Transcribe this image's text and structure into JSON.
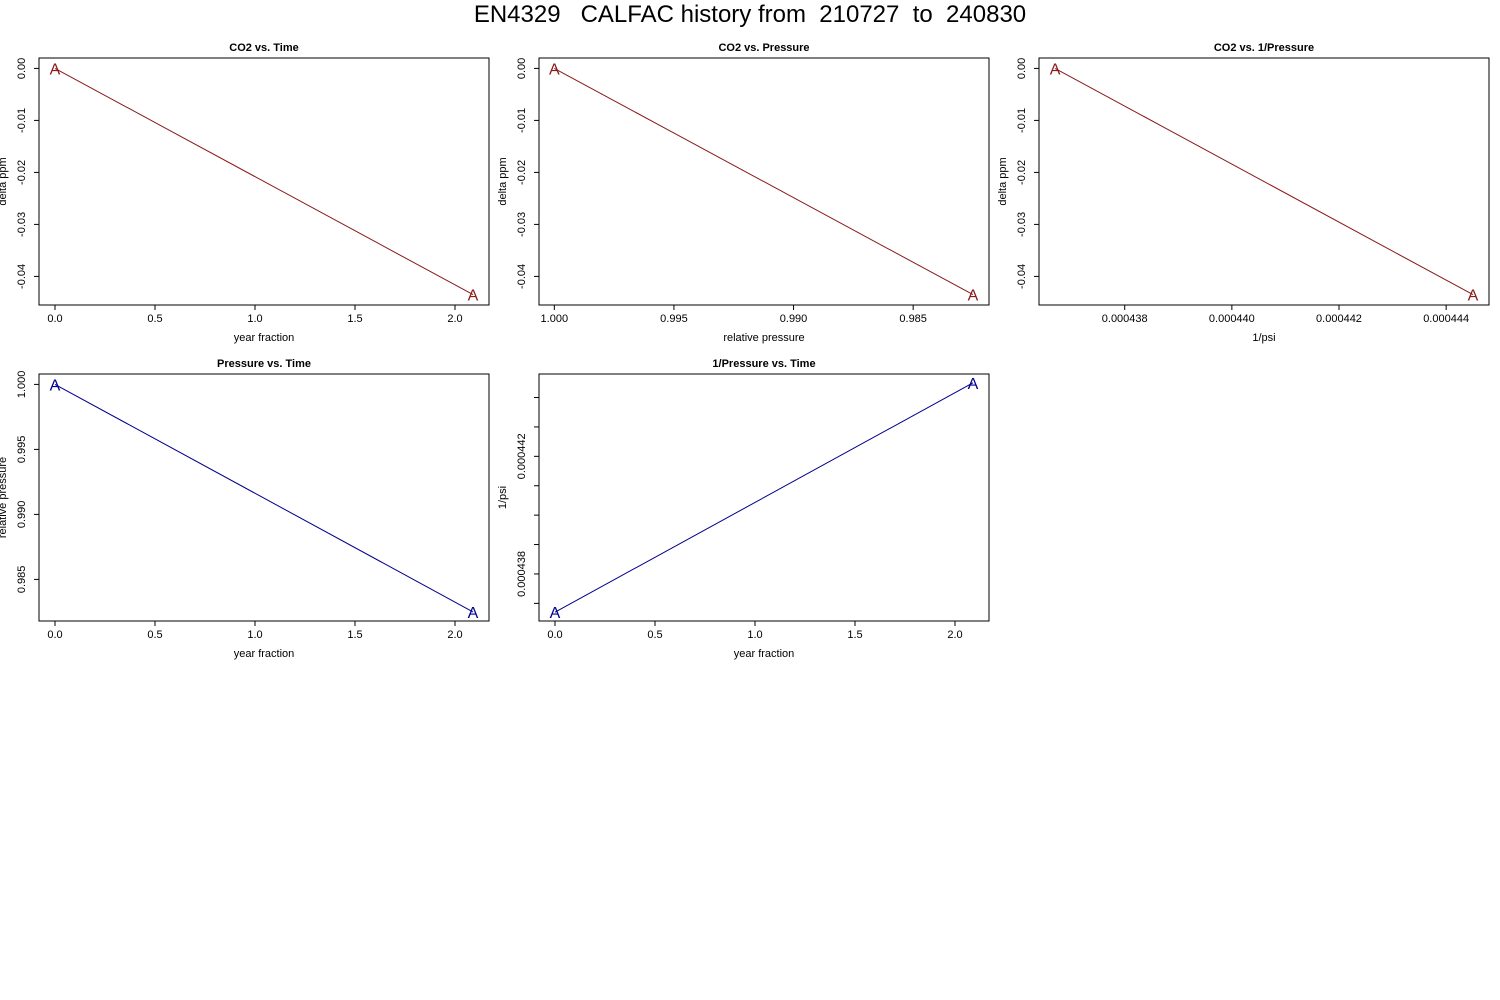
{
  "title": "EN4329   CALFAC history from  210727  to  240830",
  "colors": {
    "co2": "#8B1A1A",
    "pressure": "#00008B",
    "axis": "#000000"
  },
  "chart_data": [
    {
      "type": "line",
      "title": "CO2 vs. Time",
      "xlabel": "year fraction",
      "ylabel": "delta ppm",
      "x": [
        0.0,
        2.09
      ],
      "y": [
        0.0,
        -0.0435
      ],
      "point_labels": [
        "A",
        "A"
      ],
      "xlim": [
        -0.08,
        2.17
      ],
      "ylim": [
        -0.0455,
        0.002
      ],
      "xticks": [
        0.0,
        0.5,
        1.0,
        1.5,
        2.0
      ],
      "xtick_labels": [
        "0.0",
        "0.5",
        "1.0",
        "1.5",
        "2.0"
      ],
      "yticks": [
        0.0,
        -0.01,
        -0.02,
        -0.03,
        -0.04
      ],
      "ytick_labels": [
        "0.00",
        "-0.01",
        "-0.02",
        "-0.03",
        "-0.04"
      ],
      "color": "#8B1A1A"
    },
    {
      "type": "line",
      "title": "CO2 vs. Pressure",
      "xlabel": "relative pressure",
      "ylabel": "delta ppm",
      "x": [
        1.0,
        0.9825
      ],
      "y": [
        0.0,
        -0.0435
      ],
      "point_labels": [
        "A",
        "A"
      ],
      "xlim": [
        1.00064,
        0.98183
      ],
      "ylim": [
        -0.0455,
        0.002
      ],
      "xticks": [
        1.0,
        0.995,
        0.99,
        0.985
      ],
      "xtick_labels": [
        "1.000",
        "0.995",
        "0.990",
        "0.985"
      ],
      "yticks": [
        0.0,
        -0.01,
        -0.02,
        -0.03,
        -0.04
      ],
      "ytick_labels": [
        "0.00",
        "-0.01",
        "-0.02",
        "-0.03",
        "-0.04"
      ],
      "color": "#8B1A1A"
    },
    {
      "type": "line",
      "title": "CO2 vs. 1/Pressure",
      "xlabel": "1/psi",
      "ylabel": "delta ppm",
      "x": [
        0.0004367,
        0.0004445
      ],
      "y": [
        0.0,
        -0.0435
      ],
      "point_labels": [
        "A",
        "A"
      ],
      "xlim": [
        0.0004364,
        0.0004448
      ],
      "ylim": [
        -0.0455,
        0.002
      ],
      "xticks": [
        0.000438,
        0.00044,
        0.000442,
        0.000444
      ],
      "xtick_labels": [
        "0.000438",
        "0.000440",
        "0.000442",
        "0.000444"
      ],
      "yticks": [
        0.0,
        -0.01,
        -0.02,
        -0.03,
        -0.04
      ],
      "ytick_labels": [
        "0.00",
        "-0.01",
        "-0.02",
        "-0.03",
        "-0.04"
      ],
      "color": "#8B1A1A"
    },
    {
      "type": "line",
      "title": "Pressure vs. Time",
      "xlabel": "year fraction",
      "ylabel": "relative pressure",
      "x": [
        0.0,
        2.09
      ],
      "y": [
        1.0,
        0.9825
      ],
      "point_labels": [
        "A",
        "A"
      ],
      "xlim": [
        -0.08,
        2.17
      ],
      "ylim": [
        0.9818,
        1.0008
      ],
      "xticks": [
        0.0,
        0.5,
        1.0,
        1.5,
        2.0
      ],
      "xtick_labels": [
        "0.0",
        "0.5",
        "1.0",
        "1.5",
        "2.0"
      ],
      "yticks": [
        1.0,
        0.995,
        0.99,
        0.985
      ],
      "ytick_labels": [
        "1.000",
        "0.995",
        "0.990",
        "0.985"
      ],
      "color": "#00008B"
    },
    {
      "type": "line",
      "title": "1/Pressure vs. Time",
      "xlabel": "year fraction",
      "ylabel": "1/psi",
      "x": [
        0.0,
        2.09
      ],
      "y": [
        0.0004367,
        0.0004445
      ],
      "point_labels": [
        "A",
        "A"
      ],
      "xlim": [
        -0.08,
        2.17
      ],
      "ylim": [
        0.0004364,
        0.0004448
      ],
      "xticks": [
        0.0,
        0.5,
        1.0,
        1.5,
        2.0
      ],
      "xtick_labels": [
        "0.0",
        "0.5",
        "1.0",
        "1.5",
        "2.0"
      ],
      "yticks": [
        0.000437,
        0.000438,
        0.000439,
        0.00044,
        0.000441,
        0.000442,
        0.000443,
        0.000444
      ],
      "ytick_labels": [
        "",
        "0.000438",
        "",
        "",
        "",
        "0.000442",
        "",
        ""
      ],
      "color": "#00008B"
    }
  ]
}
